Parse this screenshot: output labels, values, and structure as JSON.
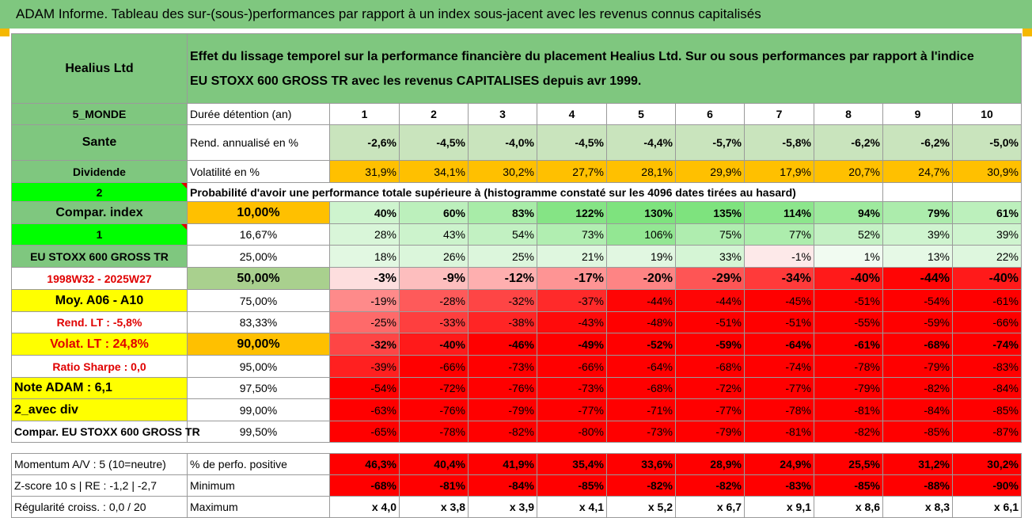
{
  "title": "ADAM Informe. Tableau des sur-(sous-)performances par rapport à un index sous-jacent avec les revenus connus capitalisés",
  "header": {
    "company": "Healius Ltd",
    "description_line1": "Effet du lissage temporel sur la performance financière du placement Healius Ltd. Sur ou sous performances par rapport à l'indice",
    "description_line2": "EU STOXX 600 GROSS TR avec les revenus CAPITALISES depuis avr 1999."
  },
  "side": {
    "region": "5_MONDE",
    "sector": "Sante",
    "dividend": "Dividende",
    "num2": "2",
    "compar_index": "Compar. index",
    "num1": "1",
    "index_name": "EU STOXX 600 GROSS TR",
    "period": "1998W32 - 2025W27",
    "moy": "Moy. A06 - A10",
    "rend_lt": "Rend. LT :    -5,8%",
    "volat_lt": "Volat. LT :    24,8%",
    "sharpe": "Ratio Sharpe :    0,0",
    "note": "Note ADAM : 6,1",
    "avec_div": "2_avec div",
    "compar_full": "Compar. EU STOXX 600 GROSS TR"
  },
  "labels": {
    "duree": "Durée détention (an)",
    "rend": "Rend. annualisé en %",
    "vol": "Volatilité en %",
    "proba": "Probabilité d'avoir une performance totale supérieure à (histogramme constaté sur les 4096 dates tirées au hasard)",
    "pct_pos": "% de perfo. positive",
    "minimum": "Minimum",
    "maximum": "Maximum",
    "momentum": "Momentum A/V : 5 (10=neutre)",
    "zscore": "Z-score 10 s | RE : -1,2 | -2,7",
    "regularite": "Régularité croiss. : 0,0 / 20"
  },
  "years": [
    "1",
    "2",
    "3",
    "4",
    "5",
    "6",
    "7",
    "8",
    "9",
    "10"
  ],
  "rend": [
    "-2,6%",
    "-4,5%",
    "-4,0%",
    "-4,5%",
    "-4,4%",
    "-5,7%",
    "-5,8%",
    "-6,2%",
    "-6,2%",
    "-5,0%"
  ],
  "vol": [
    "31,9%",
    "34,1%",
    "30,2%",
    "27,7%",
    "28,1%",
    "29,9%",
    "17,9%",
    "20,7%",
    "24,7%",
    "30,9%"
  ],
  "thresholds": [
    "10,00%",
    "16,67%",
    "25,00%",
    "50,00%",
    "75,00%",
    "83,33%",
    "90,00%",
    "95,00%",
    "97,50%",
    "99,00%",
    "99,50%"
  ],
  "prob_rows": [
    [
      "40%",
      "60%",
      "83%",
      "122%",
      "130%",
      "135%",
      "114%",
      "94%",
      "79%",
      "61%"
    ],
    [
      "28%",
      "43%",
      "54%",
      "73%",
      "106%",
      "75%",
      "77%",
      "52%",
      "39%",
      "39%"
    ],
    [
      "18%",
      "26%",
      "25%",
      "21%",
      "19%",
      "33%",
      "-1%",
      "1%",
      "13%",
      "22%"
    ],
    [
      "-3%",
      "-9%",
      "-12%",
      "-17%",
      "-20%",
      "-29%",
      "-34%",
      "-40%",
      "-44%",
      "-40%"
    ],
    [
      "-19%",
      "-28%",
      "-32%",
      "-37%",
      "-44%",
      "-44%",
      "-45%",
      "-51%",
      "-54%",
      "-61%"
    ],
    [
      "-25%",
      "-33%",
      "-38%",
      "-43%",
      "-48%",
      "-51%",
      "-51%",
      "-55%",
      "-59%",
      "-66%"
    ],
    [
      "-32%",
      "-40%",
      "-46%",
      "-49%",
      "-52%",
      "-59%",
      "-64%",
      "-61%",
      "-68%",
      "-74%"
    ],
    [
      "-39%",
      "-66%",
      "-73%",
      "-66%",
      "-64%",
      "-68%",
      "-74%",
      "-78%",
      "-79%",
      "-83%"
    ],
    [
      "-54%",
      "-72%",
      "-76%",
      "-73%",
      "-68%",
      "-72%",
      "-77%",
      "-79%",
      "-82%",
      "-84%"
    ],
    [
      "-63%",
      "-76%",
      "-79%",
      "-77%",
      "-71%",
      "-77%",
      "-78%",
      "-81%",
      "-84%",
      "-85%"
    ],
    [
      "-65%",
      "-78%",
      "-82%",
      "-80%",
      "-73%",
      "-79%",
      "-81%",
      "-82%",
      "-85%",
      "-87%"
    ]
  ],
  "pct_pos": [
    "46,3%",
    "40,4%",
    "41,9%",
    "35,4%",
    "33,6%",
    "28,9%",
    "24,9%",
    "25,5%",
    "31,2%",
    "30,2%"
  ],
  "minimum": [
    "-68%",
    "-81%",
    "-84%",
    "-85%",
    "-82%",
    "-82%",
    "-83%",
    "-85%",
    "-88%",
    "-90%"
  ],
  "maximum": [
    "x 4,0",
    "x 3,8",
    "x 3,9",
    "x 4,1",
    "x 5,2",
    "x 6,7",
    "x 9,1",
    "x 8,6",
    "x 8,3",
    "x 6,1"
  ],
  "colors": {
    "header_green": "#7fc77f",
    "bright_green": "#00ff00",
    "yellow": "#ffff00",
    "orange": "#ffc000",
    "red": "#ff0000"
  }
}
